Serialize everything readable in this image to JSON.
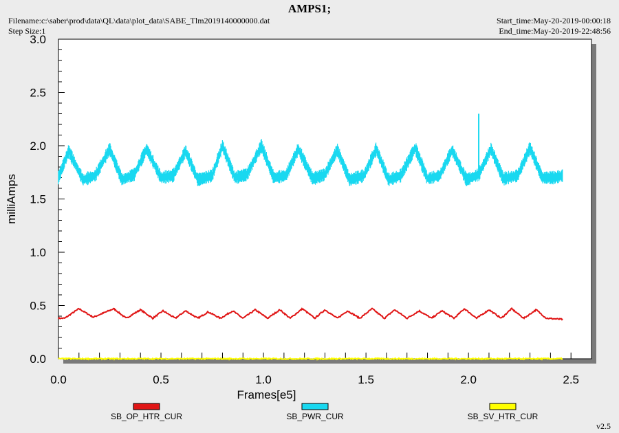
{
  "header": {
    "title": "AMPS1;",
    "filename": "Filename:c:\\saber\\prod\\data\\QL\\data\\plot_data\\SABE_Tlm2019140000000.dat",
    "step_size": "Step Size:1",
    "start_time": "Start_time:May-20-2019-00:00:18",
    "end_time": "End_time:May-20-2019-22:48:56"
  },
  "version": "v2.5",
  "colors": {
    "plot_bg": "#ffffff",
    "page_bg": "#ececec",
    "frame_shadow": "#7a7a7a",
    "pwr": "#19d8f0",
    "op_htr": "#e01515",
    "sv_htr": "#ffff00"
  },
  "chart_data": {
    "type": "line",
    "title": "AMPS1;",
    "xlabel": "Frames[e5]",
    "ylabel": "milliAmps",
    "xlim": [
      0,
      2.6
    ],
    "ylim": [
      0,
      3.0
    ],
    "x_ticks": [
      "0.0",
      "0.5",
      "1.0",
      "1.5",
      "2.0",
      "2.5"
    ],
    "y_ticks": [
      "0.0",
      "0.5",
      "1.0",
      "1.5",
      "2.0",
      "2.5",
      "3.0"
    ],
    "grid": false,
    "legend_position": "bottom",
    "series": [
      {
        "name": "SB_OP_HTR_CUR",
        "color": "#e01515",
        "x": [
          0.0,
          0.03,
          0.1,
          0.17,
          0.27,
          0.33,
          0.4,
          0.46,
          0.51,
          0.57,
          0.62,
          0.68,
          0.73,
          0.79,
          0.85,
          0.9,
          0.96,
          1.02,
          1.08,
          1.13,
          1.19,
          1.25,
          1.3,
          1.36,
          1.41,
          1.47,
          1.53,
          1.59,
          1.64,
          1.7,
          1.76,
          1.82,
          1.87,
          1.93,
          1.98,
          2.04,
          2.1,
          2.16,
          2.21,
          2.27,
          2.33,
          2.38,
          2.46
        ],
        "y": [
          0.38,
          0.38,
          0.47,
          0.39,
          0.47,
          0.38,
          0.46,
          0.38,
          0.45,
          0.38,
          0.45,
          0.38,
          0.44,
          0.38,
          0.45,
          0.38,
          0.46,
          0.38,
          0.46,
          0.38,
          0.47,
          0.38,
          0.46,
          0.38,
          0.45,
          0.38,
          0.47,
          0.38,
          0.46,
          0.38,
          0.45,
          0.38,
          0.45,
          0.38,
          0.47,
          0.38,
          0.46,
          0.38,
          0.47,
          0.38,
          0.46,
          0.38,
          0.37
        ]
      },
      {
        "name": "SB_PWR_CUR",
        "color": "#19d8f0",
        "band_halfwidth": 0.05,
        "spike": {
          "x": 2.05,
          "y": 2.3
        },
        "x": [
          0.0,
          0.05,
          0.12,
          0.18,
          0.25,
          0.31,
          0.37,
          0.43,
          0.5,
          0.56,
          0.62,
          0.68,
          0.75,
          0.8,
          0.86,
          0.92,
          0.99,
          1.05,
          1.11,
          1.17,
          1.24,
          1.3,
          1.36,
          1.42,
          1.49,
          1.55,
          1.61,
          1.67,
          1.74,
          1.8,
          1.86,
          1.92,
          1.99,
          2.05,
          2.11,
          2.17,
          2.24,
          2.3,
          2.36,
          2.42,
          2.46
        ],
        "y": [
          1.7,
          1.95,
          1.68,
          1.72,
          1.97,
          1.68,
          1.73,
          1.97,
          1.7,
          1.72,
          1.95,
          1.68,
          1.72,
          2.0,
          1.7,
          1.73,
          2.0,
          1.7,
          1.72,
          1.97,
          1.69,
          1.73,
          1.96,
          1.68,
          1.72,
          1.97,
          1.68,
          1.72,
          1.98,
          1.69,
          1.72,
          1.96,
          1.68,
          1.73,
          1.97,
          1.69,
          1.72,
          1.98,
          1.7,
          1.7,
          1.72
        ]
      },
      {
        "name": "SB_SV_HTR_CUR",
        "color": "#ffff00",
        "x": [
          0.0,
          2.46
        ],
        "y": [
          0.0,
          0.0
        ]
      }
    ]
  }
}
